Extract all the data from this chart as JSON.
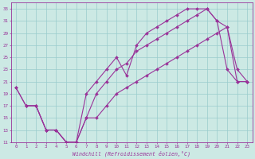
{
  "xlabel": "Windchill (Refroidissement éolien,°C)",
  "ylim": [
    11,
    34
  ],
  "xlim": [
    -0.5,
    23.5
  ],
  "yticks": [
    11,
    13,
    15,
    17,
    19,
    21,
    23,
    25,
    27,
    29,
    31,
    33
  ],
  "xticks": [
    0,
    1,
    2,
    3,
    4,
    5,
    6,
    7,
    8,
    9,
    10,
    11,
    12,
    13,
    14,
    15,
    16,
    17,
    18,
    19,
    20,
    21,
    22,
    23
  ],
  "bg_color": "#cce9e4",
  "line_color": "#993399",
  "grid_color": "#99cccc",
  "line1_x": [
    0,
    1,
    2,
    3,
    4,
    5,
    6,
    7,
    8,
    9,
    10,
    11,
    12,
    13,
    14,
    15,
    16,
    17,
    18,
    19,
    20,
    21,
    22,
    23
  ],
  "line1_y": [
    20,
    17,
    17,
    13,
    13,
    11,
    11,
    19,
    21,
    23,
    25,
    22,
    27,
    29,
    30,
    31,
    32,
    33,
    33,
    33,
    31,
    30,
    23,
    21
  ],
  "line2_x": [
    0,
    1,
    2,
    3,
    4,
    5,
    6,
    7,
    8,
    9,
    10,
    11,
    12,
    13,
    14,
    15,
    16,
    17,
    18,
    19,
    20,
    21,
    22,
    23
  ],
  "line2_y": [
    20,
    17,
    17,
    13,
    13,
    11,
    11,
    15,
    19,
    21,
    23,
    24,
    26,
    27,
    28,
    29,
    30,
    31,
    32,
    33,
    31,
    23,
    21,
    21
  ],
  "line3_x": [
    1,
    2,
    3,
    4,
    5,
    6,
    7,
    8,
    9,
    10,
    11,
    12,
    13,
    14,
    15,
    16,
    17,
    18,
    19,
    20,
    21,
    22,
    23
  ],
  "line3_y": [
    17,
    17,
    13,
    13,
    11,
    11,
    15,
    15,
    17,
    19,
    20,
    21,
    22,
    23,
    24,
    25,
    26,
    27,
    28,
    29,
    30,
    21,
    21
  ]
}
